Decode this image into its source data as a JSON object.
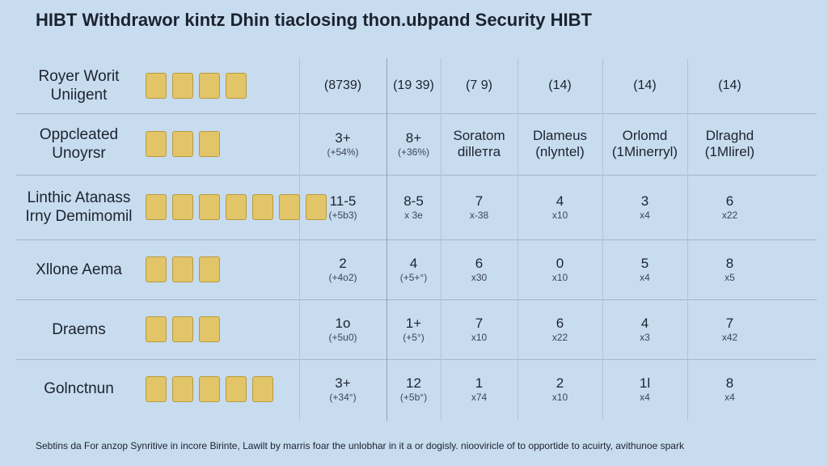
{
  "header": {
    "title": "HIBT Withdrawor kintz Dhin tiaclosing thon.ubpand Security HIBT"
  },
  "table": {
    "columns": [
      "Royer Worit Uniigent",
      "(8739)",
      "(19 39)",
      "(7 9)",
      "(14)",
      "(14)",
      "(14)"
    ],
    "rows": [
      {
        "label": "Oppcleated Unoyrsr",
        "cells": [
          [
            "3+",
            "(+54%)"
          ],
          [
            "8+",
            "(+36%)"
          ],
          [
            "Soratom",
            "dilleтra"
          ],
          [
            "Dlameus",
            "(nlyntel)"
          ],
          [
            "Orlomd",
            "(1Minerryl)"
          ],
          [
            "Dlraghd",
            "(1Mlirel)"
          ]
        ]
      },
      {
        "label": "Linthic Atanass Irny Demimomil",
        "cells": [
          [
            "11-5",
            "(+5b3)"
          ],
          [
            "8-5",
            "x 3e"
          ],
          [
            "7",
            "x-38"
          ],
          [
            "4",
            "x10"
          ],
          [
            "3",
            "x4"
          ],
          [
            "6",
            "x22"
          ]
        ]
      },
      {
        "label": "Xllone Aema",
        "cells": [
          [
            "2",
            "(+4o2)"
          ],
          [
            "4",
            "(+5+°)"
          ],
          [
            "6",
            "x30"
          ],
          [
            "0",
            "x10"
          ],
          [
            "5",
            "x4"
          ],
          [
            "8",
            "x5"
          ]
        ]
      },
      {
        "label": "Draems",
        "cells": [
          [
            "1o",
            "(+5u0)"
          ],
          [
            "1+",
            "(+5°)"
          ],
          [
            "7",
            "x10"
          ],
          [
            "6",
            "x22"
          ],
          [
            "4",
            "x3"
          ],
          [
            "7",
            "x42"
          ]
        ]
      },
      {
        "label": "Golnctnun",
        "cells": [
          [
            "3+",
            "(+34°)"
          ],
          [
            "12",
            "(+5b°)"
          ],
          [
            "1",
            "x74"
          ],
          [
            "2",
            "x10"
          ],
          [
            "1l",
            "x4"
          ],
          [
            "8",
            "x4"
          ]
        ]
      }
    ]
  },
  "footer": "Sebtins da For anzop Synritive in incore Birinte, Lawilt by marris foar the unlobhar in it a or dogisly. niooviricle of to opportide to acuirty, avithunoe spark"
}
